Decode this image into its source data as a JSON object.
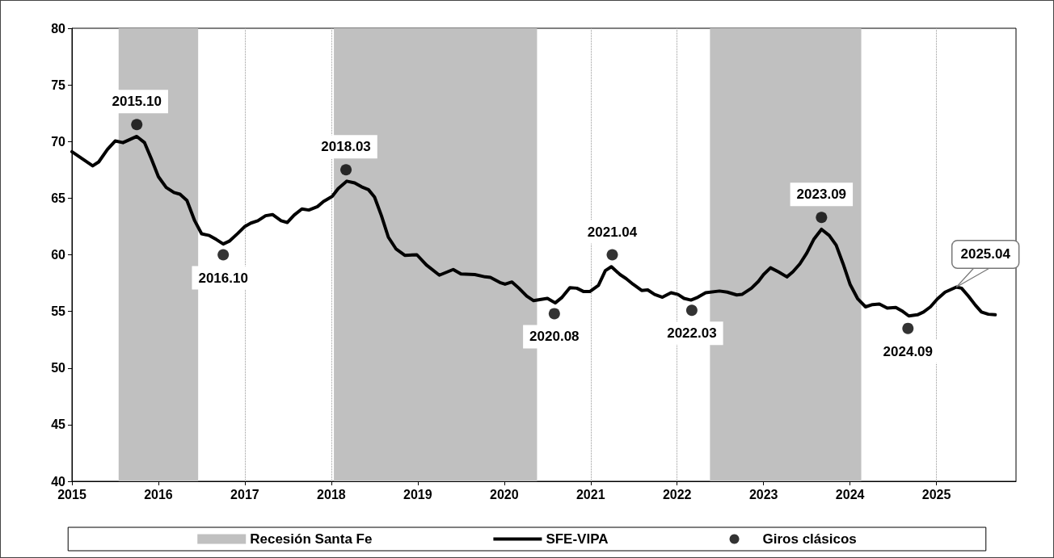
{
  "chart_data": {
    "type": "line",
    "xlim": [
      2015,
      2025.92
    ],
    "xticks": [
      2015,
      2016,
      2017,
      2018,
      2019,
      2020,
      2021,
      2022,
      2023,
      2024,
      2025
    ],
    "ylim": [
      40,
      80
    ],
    "yticks": [
      40,
      45,
      50,
      55,
      60,
      65,
      70,
      75,
      80
    ],
    "grid": "x",
    "legend": "bottom",
    "line_style": "solid",
    "marker": "none",
    "bands": [
      {
        "axis": "x",
        "from": 2015.54,
        "to": 2016.46,
        "label": "Recesión Santa Fe",
        "color": "#c0c0c0"
      },
      {
        "axis": "x",
        "from": 2018.03,
        "to": 2020.38,
        "color": "#c0c0c0"
      },
      {
        "axis": "x",
        "from": 2022.38,
        "to": 2024.13,
        "color": "#c0c0c0"
      }
    ],
    "series": [
      {
        "name": "SFE-VIPA",
        "color": "#000000",
        "x": [
          2015.0,
          2015.24,
          2015.31,
          2015.41,
          2015.5,
          2015.59,
          2015.75,
          2015.84,
          2015.92,
          2016.0,
          2016.09,
          2016.18,
          2016.25,
          2016.33,
          2016.42,
          2016.5,
          2016.59,
          2016.67,
          2016.75,
          2016.82,
          2016.92,
          2017.0,
          2017.07,
          2017.15,
          2017.24,
          2017.32,
          2017.42,
          2017.49,
          2017.57,
          2017.66,
          2017.74,
          2017.84,
          2017.91,
          2018.01,
          2018.08,
          2018.18,
          2018.27,
          2018.35,
          2018.43,
          2018.5,
          2018.58,
          2018.66,
          2018.75,
          2018.85,
          2018.99,
          2019.1,
          2019.25,
          2019.41,
          2019.5,
          2019.66,
          2019.78,
          2019.84,
          2019.95,
          2020.01,
          2020.09,
          2020.17,
          2020.26,
          2020.34,
          2020.5,
          2020.59,
          2020.67,
          2020.76,
          2020.84,
          2020.92,
          2020.99,
          2021.09,
          2021.17,
          2021.24,
          2021.34,
          2021.41,
          2021.49,
          2021.59,
          2021.66,
          2021.74,
          2021.83,
          2021.93,
          2022.01,
          2022.08,
          2022.16,
          2022.24,
          2022.33,
          2022.49,
          2022.58,
          2022.69,
          2022.75,
          2022.86,
          2022.94,
          2023.0,
          2023.08,
          2023.17,
          2023.27,
          2023.34,
          2023.42,
          2023.5,
          2023.58,
          2023.67,
          2023.76,
          2023.84,
          2023.92,
          2024.0,
          2024.09,
          2024.18,
          2024.26,
          2024.34,
          2024.43,
          2024.53,
          2024.6,
          2024.68,
          2024.78,
          2024.85,
          2024.93,
          2025.01,
          2025.1,
          2025.23,
          2025.29,
          2025.37,
          2025.45,
          2025.52,
          2025.6,
          2025.68
        ],
        "values": [
          69.1,
          67.85,
          68.2,
          69.3,
          70.05,
          69.9,
          70.45,
          69.9,
          68.45,
          66.9,
          65.95,
          65.5,
          65.35,
          64.8,
          63.0,
          61.85,
          61.7,
          61.35,
          60.95,
          61.2,
          61.9,
          62.5,
          62.8,
          63.0,
          63.45,
          63.55,
          63.0,
          62.85,
          63.5,
          64.05,
          63.95,
          64.25,
          64.7,
          65.15,
          65.85,
          66.5,
          66.35,
          66.0,
          65.75,
          65.1,
          63.45,
          61.55,
          60.5,
          59.95,
          60.0,
          59.1,
          58.2,
          58.7,
          58.3,
          58.25,
          58.05,
          58.0,
          57.55,
          57.4,
          57.6,
          57.05,
          56.35,
          55.95,
          56.15,
          55.75,
          56.25,
          57.1,
          57.05,
          56.75,
          56.75,
          57.3,
          58.6,
          58.95,
          58.25,
          57.9,
          57.4,
          56.85,
          56.9,
          56.5,
          56.25,
          56.65,
          56.5,
          56.15,
          56.0,
          56.25,
          56.65,
          56.8,
          56.7,
          56.45,
          56.5,
          57.05,
          57.65,
          58.25,
          58.85,
          58.5,
          58.05,
          58.5,
          59.2,
          60.15,
          61.35,
          62.25,
          61.7,
          60.85,
          59.2,
          57.4,
          56.1,
          55.4,
          55.6,
          55.65,
          55.3,
          55.35,
          55.05,
          54.6,
          54.7,
          54.95,
          55.4,
          56.1,
          56.7,
          57.15,
          57.05,
          56.35,
          55.55,
          54.95,
          54.75,
          54.7
        ]
      },
      {
        "name": "Giros clásicos",
        "type": "scatter",
        "marker": "circle",
        "color": "#000000",
        "x": [
          2015.75,
          2016.75,
          2018.17,
          2020.58,
          2021.25,
          2022.17,
          2023.67,
          2024.67
        ],
        "values": [
          71.5,
          60.0,
          67.5,
          54.8,
          60.0,
          55.1,
          63.3,
          53.5
        ]
      }
    ],
    "annotations": [
      {
        "text": "2015.10",
        "x": 2015.75,
        "y": 71.5
      },
      {
        "text": "2016.10",
        "x": 2016.75,
        "y": 60.0
      },
      {
        "text": "2018.03",
        "x": 2018.17,
        "y": 67.5
      },
      {
        "text": "2020.08",
        "x": 2020.58,
        "y": 54.8
      },
      {
        "text": "2021.04",
        "x": 2021.25,
        "y": 60.0
      },
      {
        "text": "2022.03",
        "x": 2022.17,
        "y": 55.1
      },
      {
        "text": "2023.09",
        "x": 2023.67,
        "y": 63.3
      },
      {
        "text": "2024.09",
        "x": 2024.67,
        "y": 53.5
      },
      {
        "text": "2025.04",
        "x": 2025.23,
        "y": 57.15
      }
    ]
  }
}
